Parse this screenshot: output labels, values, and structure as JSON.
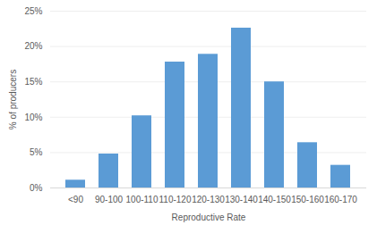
{
  "chart_data": {
    "type": "bar",
    "categories": [
      "<90",
      "90-100",
      "100-110",
      "110-120",
      "120-130",
      "130-140",
      "140-150",
      "150-160",
      "160-170"
    ],
    "values": [
      1.1,
      4.8,
      10.2,
      17.8,
      18.9,
      22.6,
      15.0,
      6.4,
      3.2
    ],
    "color": "#5b9bd5",
    "x_label": "Reproductive Rate",
    "y_label": "% of producers",
    "ylim": [
      0,
      25
    ],
    "yticks": [
      {
        "value": 0,
        "label": "0%"
      },
      {
        "value": 5,
        "label": "5%"
      },
      {
        "value": 10,
        "label": "10%"
      },
      {
        "value": 15,
        "label": "15%"
      },
      {
        "value": 20,
        "label": "20%"
      },
      {
        "value": 25,
        "label": "25%"
      }
    ],
    "grid": true
  }
}
